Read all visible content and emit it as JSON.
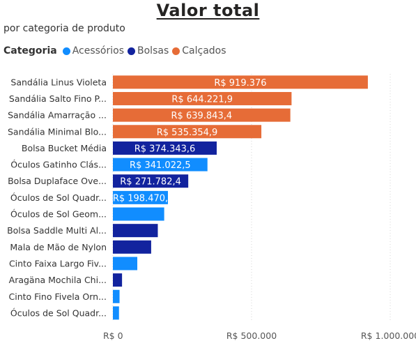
{
  "chart_data": {
    "type": "bar",
    "orientation": "horizontal",
    "title": "Valor total",
    "subtitle": "por categoria de produto",
    "legend": {
      "title": "Categoria",
      "placement": "top-left",
      "entries": [
        {
          "name": "Acessórios",
          "color": "#118DFF"
        },
        {
          "name": "Bolsas",
          "color": "#12239E"
        },
        {
          "name": "Calçados",
          "color": "#E66C37"
        }
      ]
    },
    "categories": [
      "Sandália Linus Violeta",
      "Sandália Salto Fino P...",
      "Sandália Amarração ...",
      "Sandália Minimal Blo...",
      "Bolsa Bucket Média",
      "Óculos Gatinho Clás...",
      "Bolsa Duplaface Ove...",
      "Óculos de Sol Quadr...",
      "Óculos de Sol Geom...",
      "Bolsa Saddle Multi Al...",
      "Mala de Mão de Nylon",
      "Cinto Faixa Largo Fiv...",
      "Aragäna Mochila Chi...",
      "Cinto Fino Fivela Orn...",
      "Óculos de Sol Quadr..."
    ],
    "values": [
      919376,
      644221.9,
      639843.4,
      535354.9,
      374343.6,
      341022.5,
      271782.4,
      198470,
      185000,
      162000,
      138000,
      88000,
      33000,
      24000,
      22000
    ],
    "groups": [
      "Calçados",
      "Calçados",
      "Calçados",
      "Calçados",
      "Bolsas",
      "Acessórios",
      "Bolsas",
      "Acessórios",
      "Acessórios",
      "Bolsas",
      "Bolsas",
      "Acessórios",
      "Bolsas",
      "Acessórios",
      "Acessórios"
    ],
    "data_labels": [
      "R$ 919.376",
      "R$ 644.221,9",
      "R$ 639.843,4",
      "R$ 535.354,9",
      "R$ 374.343,6",
      "R$ 341.022,5",
      "R$ 271.782,4",
      "R$ 198.470,",
      "",
      "",
      "",
      "",
      "",
      "",
      ""
    ],
    "xlim": [
      0,
      1000000
    ],
    "xticks": [
      0,
      500000,
      1000000
    ],
    "xtick_labels": [
      "R$ 0",
      "R$ 500.000",
      "R$ 1.000.000"
    ],
    "grid": true,
    "xlabel": "",
    "ylabel": ""
  }
}
